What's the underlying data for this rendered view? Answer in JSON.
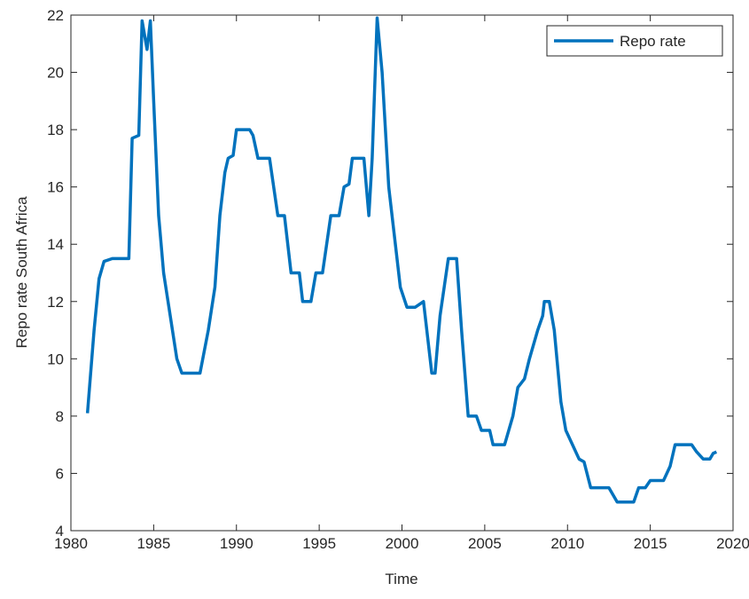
{
  "chart_data": {
    "type": "line",
    "x_label": "Time",
    "y_label": "Repo rate South Africa",
    "xlim": [
      1980,
      2020
    ],
    "ylim": [
      4,
      22
    ],
    "xticks": [
      1980,
      1985,
      1990,
      1995,
      2000,
      2005,
      2010,
      2015,
      2020
    ],
    "yticks": [
      4,
      6,
      8,
      10,
      12,
      14,
      16,
      18,
      20,
      22
    ],
    "grid": false,
    "legend": "top-right",
    "x": [
      1981.0,
      1981.4,
      1981.7,
      1982.0,
      1982.5,
      1983.5,
      1983.7,
      1984.1,
      1984.3,
      1984.6,
      1984.8,
      1985.0,
      1985.3,
      1985.6,
      1986.0,
      1986.4,
      1986.7,
      1987.8,
      1988.3,
      1988.7,
      1989.0,
      1989.3,
      1989.5,
      1989.8,
      1990.0,
      1990.8,
      1991.0,
      1991.3,
      1992.0,
      1992.5,
      1992.9,
      1993.3,
      1993.8,
      1994.0,
      1994.5,
      1994.8,
      1995.2,
      1995.7,
      1996.2,
      1996.5,
      1996.8,
      1997.0,
      1997.7,
      1998.0,
      1998.2,
      1998.5,
      1998.8,
      1999.2,
      1999.6,
      1999.9,
      2000.3,
      2000.8,
      2001.3,
      2001.8,
      2002.0,
      2002.3,
      2002.8,
      2003.3,
      2003.6,
      2004.0,
      2004.5,
      2004.8,
      2005.3,
      2005.5,
      2006.2,
      2006.7,
      2007.0,
      2007.4,
      2007.7,
      2008.2,
      2008.5,
      2008.6,
      2008.9,
      2009.2,
      2009.6,
      2009.9,
      2010.3,
      2010.7,
      2011.0,
      2011.4,
      2012.5,
      2012.8,
      2013.0,
      2014.0,
      2014.3,
      2014.7,
      2015.0,
      2015.8,
      2016.2,
      2016.5,
      2017.5,
      2017.8,
      2018.2,
      2018.6,
      2018.8,
      2019.0
    ],
    "series": [
      {
        "name": "Repo rate",
        "color": "#0072bd",
        "values": [
          8.1,
          11,
          12.8,
          13.4,
          13.5,
          13.5,
          17.7,
          17.8,
          21.8,
          20.8,
          21.8,
          19,
          15,
          13,
          11.5,
          10,
          9.5,
          9.5,
          11,
          12.5,
          15,
          16.5,
          17,
          17.1,
          18,
          18,
          17.8,
          17,
          17,
          15,
          15,
          13,
          13,
          12,
          12,
          13,
          13,
          15,
          15,
          16,
          16.1,
          17,
          17,
          15,
          17,
          21.9,
          20,
          16,
          14,
          12.5,
          11.8,
          11.8,
          12,
          9.5,
          9.5,
          11.5,
          13.5,
          13.5,
          11,
          8,
          8,
          7.5,
          7.5,
          7,
          7,
          8,
          9,
          9.3,
          10,
          11,
          11.5,
          12,
          12,
          11,
          8.5,
          7.5,
          7,
          6.5,
          6.4,
          5.5,
          5.5,
          5.2,
          5,
          5,
          5.5,
          5.5,
          5.75,
          5.75,
          6.25,
          7,
          7,
          6.75,
          6.5,
          6.5,
          6.7,
          6.75
        ]
      }
    ]
  }
}
